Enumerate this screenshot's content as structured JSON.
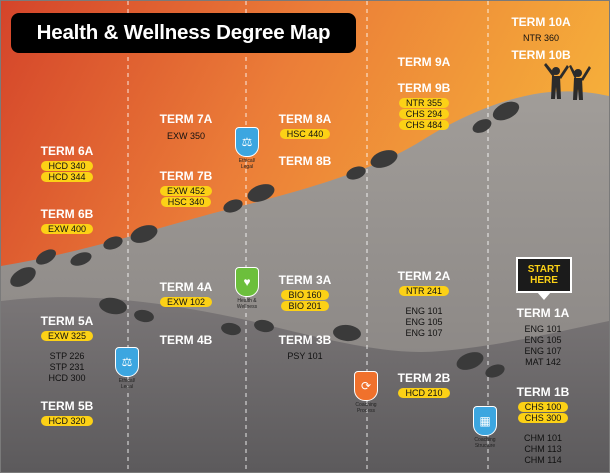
{
  "title": "Health & Wellness Degree Map",
  "start_label": "START HERE",
  "terms": {
    "t10a": {
      "title": "TERM 10A",
      "plain": [
        "NTR 360"
      ]
    },
    "t10b": {
      "title": "TERM 10B"
    },
    "t9a": {
      "title": "TERM 9A"
    },
    "t9b": {
      "title": "TERM 9B",
      "courses": [
        "NTR 355",
        "CHS 294",
        "CHS 484"
      ]
    },
    "t8a": {
      "title": "TERM 8A",
      "courses": [
        "HSC 440"
      ]
    },
    "t8b": {
      "title": "TERM 8B"
    },
    "t7a": {
      "title": "TERM 7A",
      "plain": [
        "EXW 350"
      ]
    },
    "t7b": {
      "title": "TERM 7B",
      "courses": [
        "EXW 452",
        "HSC 340"
      ]
    },
    "t6a": {
      "title": "TERM 6A",
      "courses": [
        "HCD 340",
        "HCD 344"
      ]
    },
    "t6b": {
      "title": "TERM 6B",
      "courses": [
        "EXW 400"
      ]
    },
    "t5a": {
      "title": "TERM 5A",
      "courses": [
        "EXW 325"
      ],
      "plain": [
        "STP 226",
        "STP 231",
        "HCD 300"
      ]
    },
    "t5b": {
      "title": "TERM 5B",
      "courses": [
        "HCD 320"
      ]
    },
    "t4a": {
      "title": "TERM 4A",
      "courses": [
        "EXW 102"
      ]
    },
    "t4b": {
      "title": "TERM 4B"
    },
    "t3a": {
      "title": "TERM 3A",
      "courses": [
        "BIO 160",
        "BIO 201"
      ]
    },
    "t3b": {
      "title": "TERM 3B",
      "plain": [
        "PSY 101"
      ]
    },
    "t2a": {
      "title": "TERM 2A",
      "courses": [
        "NTR 241"
      ],
      "plain": [
        "ENG 101",
        "ENG 105",
        "ENG 107"
      ]
    },
    "t2b": {
      "title": "TERM 2B",
      "courses": [
        "HCD 210"
      ]
    },
    "t1a": {
      "title": "TERM 1A",
      "plain": [
        "ENG 101",
        "ENG 105",
        "ENG 107",
        "MAT 142"
      ]
    },
    "t1b": {
      "title": "TERM 1B",
      "courses": [
        "CHS 100",
        "CHS 300"
      ],
      "plain": [
        "CHM 101",
        "CHM 113",
        "CHM 114"
      ]
    }
  },
  "badges": {
    "ethical_top": {
      "label": "Ethical/ Legal",
      "icon": "scales-icon",
      "color": "#3ca6e0"
    },
    "ethical_bottom": {
      "label": "Ethical/ Legal",
      "icon": "scales-icon",
      "color": "#3ca6e0"
    },
    "health": {
      "label": "Health & Wellness",
      "icon": "heart-icon",
      "color": "#6cbf3c"
    },
    "coaching_process": {
      "label": "Coaching Process",
      "icon": "cycle-icon",
      "color": "#f0712c"
    },
    "coaching_structure": {
      "label": "Coaching Structure",
      "icon": "org-chart-icon",
      "color": "#3ca6e0"
    }
  }
}
